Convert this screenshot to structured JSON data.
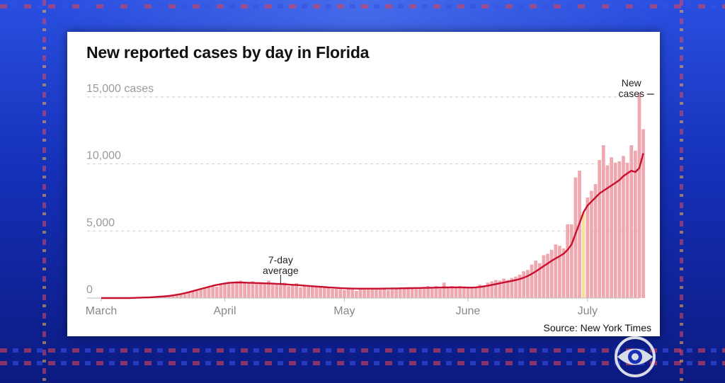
{
  "colors": {
    "bar": "#f0a8b0",
    "highlight_bar": "#f7dfa0",
    "line": "#c8102e",
    "grid": "#cccccc",
    "panel": "#ffffff",
    "background": "#1a2fb8"
  },
  "icons": {
    "network_logo": "cbs-eye-icon"
  },
  "chart_data": {
    "type": "bar",
    "title": "New reported cases by day in Florida",
    "source": "Source: New York Times",
    "yticks": [
      {
        "value": 0,
        "label": "0"
      },
      {
        "value": 5000,
        "label": "5,000"
      },
      {
        "value": 10000,
        "label": "10,000"
      },
      {
        "value": 15000,
        "label": "15,000 cases"
      }
    ],
    "xticks": [
      {
        "day": 0,
        "label": "March"
      },
      {
        "day": 31,
        "label": "April"
      },
      {
        "day": 61,
        "label": "May"
      },
      {
        "day": 92,
        "label": "June"
      },
      {
        "day": 122,
        "label": "July"
      }
    ],
    "ylim": [
      0,
      15000
    ],
    "xlim": [
      0,
      135
    ],
    "grid": true,
    "highlight_day": 121,
    "annotations": {
      "new_cases": [
        "New",
        "cases"
      ],
      "average": [
        "7-day",
        "average"
      ]
    },
    "series": [
      {
        "name": "New cases",
        "type": "bar",
        "values": [
          2,
          4,
          6,
          8,
          10,
          12,
          15,
          20,
          25,
          32,
          40,
          50,
          60,
          75,
          90,
          110,
          130,
          160,
          200,
          250,
          300,
          370,
          430,
          520,
          580,
          650,
          720,
          800,
          900,
          850,
          1000,
          1100,
          1200,
          1150,
          1250,
          1300,
          1200,
          1150,
          1250,
          1100,
          1050,
          1150,
          1300,
          1100,
          1000,
          1050,
          1150,
          900,
          1000,
          1100,
          800,
          900,
          950,
          850,
          900,
          850,
          800,
          750,
          700,
          700,
          650,
          600,
          700,
          650,
          550,
          700,
          650,
          750,
          700,
          650,
          650,
          700,
          600,
          650,
          750,
          700,
          800,
          700,
          750,
          800,
          700,
          750,
          900,
          800,
          900,
          700,
          1150,
          750,
          900,
          850,
          900,
          800,
          750,
          800,
          750,
          1000,
          900,
          1150,
          1250,
          1350,
          1300,
          1450,
          1350,
          1500,
          1600,
          1750,
          2000,
          2100,
          2500,
          2800,
          2600,
          3200,
          3300,
          3600,
          4000,
          3900,
          3700,
          5500,
          5500,
          9000,
          9500,
          6400,
          7500,
          8000,
          8500,
          10300,
          11400,
          9900,
          10500,
          10100,
          10200,
          10600,
          10100,
          11400,
          11000,
          15300,
          12600
        ]
      },
      {
        "name": "7-day average",
        "type": "line",
        "values": [
          0,
          0,
          0,
          0,
          0,
          0,
          0,
          0,
          10,
          20,
          30,
          40,
          50,
          70,
          90,
          110,
          130,
          160,
          200,
          250,
          300,
          370,
          440,
          520,
          600,
          680,
          760,
          840,
          920,
          980,
          1040,
          1090,
          1130,
          1150,
          1160,
          1160,
          1150,
          1140,
          1130,
          1120,
          1110,
          1100,
          1090,
          1080,
          1060,
          1050,
          1030,
          1010,
          990,
          970,
          950,
          930,
          910,
          880,
          860,
          840,
          820,
          800,
          780,
          760,
          740,
          730,
          720,
          710,
          700,
          700,
          700,
          700,
          700,
          700,
          700,
          710,
          710,
          720,
          720,
          730,
          730,
          740,
          740,
          750,
          750,
          760,
          760,
          770,
          780,
          780,
          790,
          790,
          800,
          800,
          800,
          790,
          780,
          780,
          800,
          830,
          870,
          920,
          980,
          1040,
          1100,
          1160,
          1220,
          1280,
          1340,
          1420,
          1520,
          1650,
          1800,
          1980,
          2180,
          2380,
          2580,
          2780,
          2960,
          3120,
          3300,
          3600,
          4000,
          4800,
          5600,
          6400,
          6900,
          7200,
          7500,
          7800,
          8000,
          8200,
          8400,
          8600,
          8800,
          9100,
          9300,
          9500,
          9400,
          9700,
          10800
        ]
      }
    ]
  }
}
